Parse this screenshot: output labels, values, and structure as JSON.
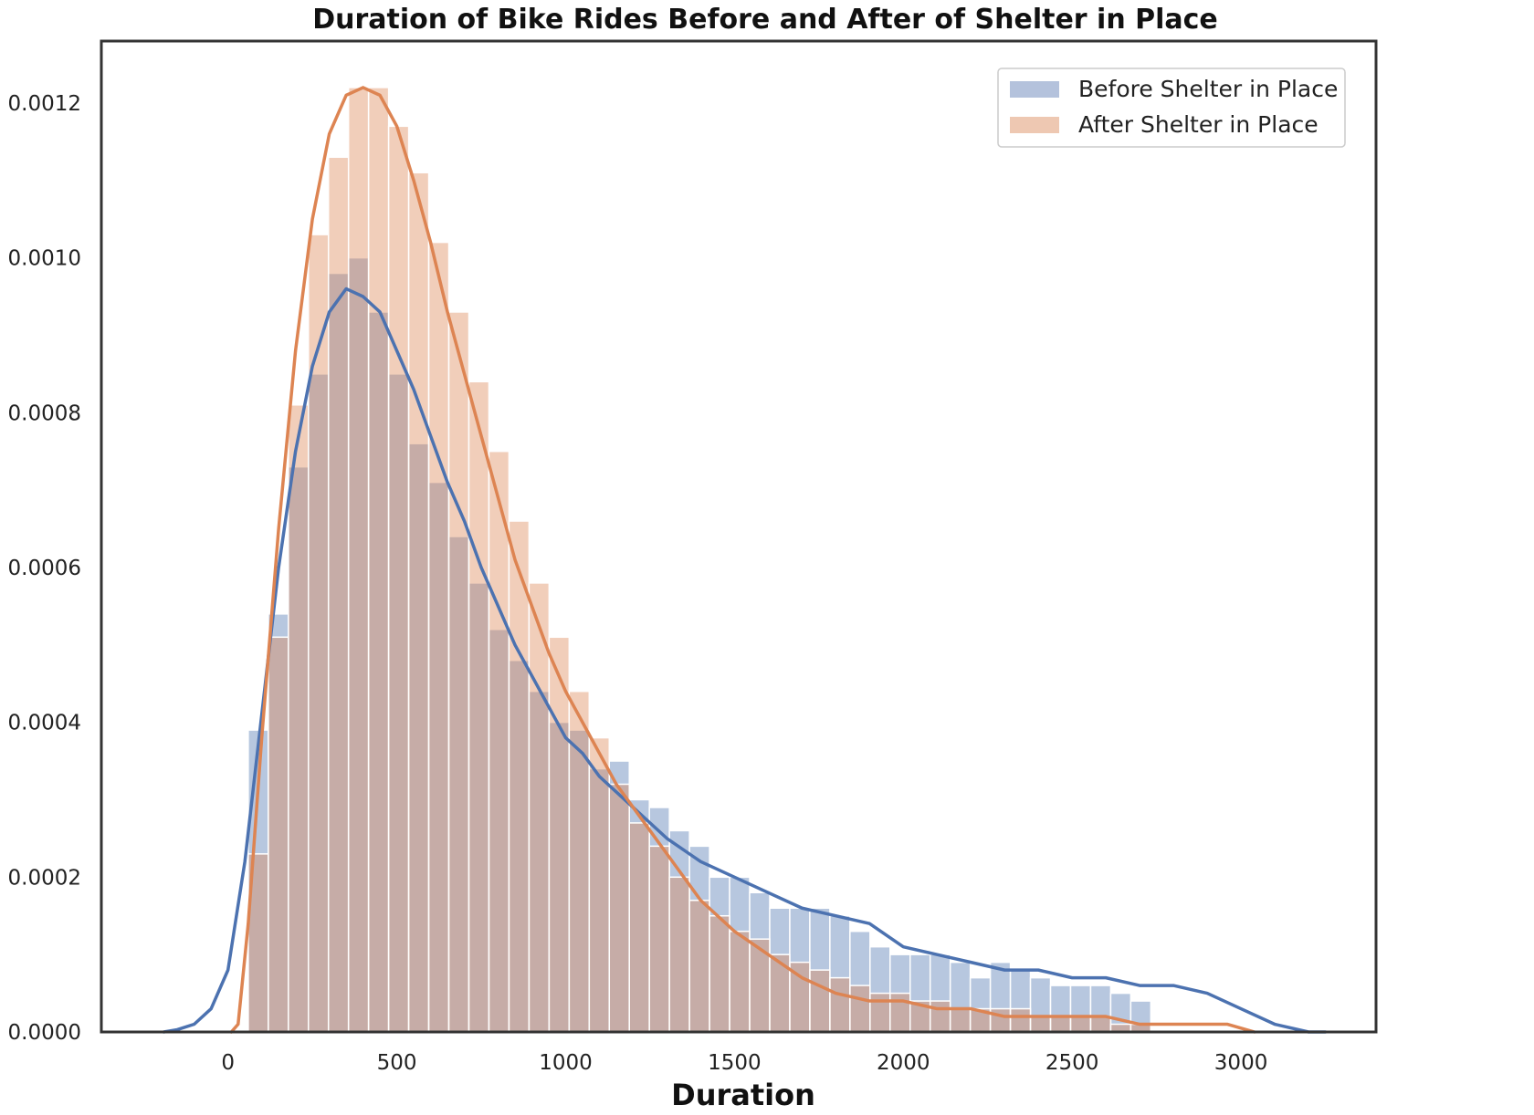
{
  "chart_data": {
    "type": "histogram",
    "title": "Duration of Bike Rides Before and After of Shelter in Place",
    "xlabel": "Duration",
    "ylabel": "",
    "xlim": [
      -375,
      3400
    ],
    "ylim": [
      0,
      0.00128
    ],
    "x_ticks": [
      0,
      500,
      1000,
      1500,
      2000,
      2500,
      3000
    ],
    "y_ticks": [
      0,
      0.0002,
      0.0004,
      0.0006,
      0.0008,
      0.001,
      0.0012
    ],
    "x_tick_labels": [
      "0",
      "500",
      "1000",
      "1500",
      "2000",
      "2500",
      "3000"
    ],
    "y_tick_labels": [
      "0.0000",
      "0.0002",
      "0.0004",
      "0.0006",
      "0.0008",
      "0.0010",
      "0.0012"
    ],
    "grid": false,
    "legend_position": "top-right",
    "bin_start": 60,
    "bin_width": 59.4,
    "series": [
      {
        "name": "Before Shelter in Place",
        "color": "#4c72b0",
        "bar_color": "#b4c2dc",
        "values": [
          0.00039,
          0.00054,
          0.00073,
          0.00085,
          0.00098,
          0.001,
          0.00093,
          0.00085,
          0.00076,
          0.00071,
          0.00064,
          0.00058,
          0.00052,
          0.00048,
          0.00044,
          0.0004,
          0.00039,
          0.00034,
          0.00035,
          0.0003,
          0.00029,
          0.00026,
          0.00024,
          0.0002,
          0.0002,
          0.00018,
          0.00016,
          0.00016,
          0.00016,
          0.00015,
          0.00013,
          0.00011,
          0.0001,
          0.0001,
          0.0001,
          9e-05,
          7e-05,
          9e-05,
          8e-05,
          7e-05,
          6e-05,
          6e-05,
          6e-05,
          5e-05,
          4e-05
        ]
      },
      {
        "name": "After Shelter in Place",
        "color": "#dd8452",
        "bar_color": "#eec8b2",
        "values": [
          0.00023,
          0.00051,
          0.00081,
          0.00103,
          0.00113,
          0.00122,
          0.00122,
          0.00117,
          0.00111,
          0.00102,
          0.00093,
          0.00084,
          0.00075,
          0.00066,
          0.00058,
          0.00051,
          0.00044,
          0.00038,
          0.00032,
          0.00027,
          0.00024,
          0.0002,
          0.00017,
          0.00015,
          0.00013,
          0.00012,
          0.0001,
          9e-05,
          8e-05,
          7e-05,
          6e-05,
          5e-05,
          5e-05,
          4e-05,
          4e-05,
          3e-05,
          3e-05,
          3e-05,
          3e-05,
          2e-05,
          2e-05,
          2e-05,
          2e-05,
          1e-05,
          1e-05
        ]
      }
    ],
    "kde": [
      {
        "name": "Before Shelter in Place",
        "x": [
          -190,
          -150,
          -100,
          -50,
          0,
          50,
          100,
          150,
          200,
          250,
          300,
          350,
          400,
          450,
          500,
          550,
          600,
          650,
          700,
          750,
          800,
          850,
          900,
          950,
          1000,
          1050,
          1100,
          1200,
          1300,
          1400,
          1500,
          1600,
          1700,
          1800,
          1900,
          2000,
          2100,
          2200,
          2300,
          2400,
          2500,
          2600,
          2700,
          2800,
          2900,
          3000,
          3100,
          3200,
          3250
        ],
        "y": [
          0,
          3e-06,
          1e-05,
          3e-05,
          8e-05,
          0.00022,
          0.00041,
          0.0006,
          0.00075,
          0.00086,
          0.00093,
          0.00096,
          0.00095,
          0.00093,
          0.00088,
          0.00083,
          0.00077,
          0.00071,
          0.00066,
          0.0006,
          0.00055,
          0.0005,
          0.00046,
          0.00042,
          0.00038,
          0.00036,
          0.00033,
          0.00029,
          0.00025,
          0.00022,
          0.0002,
          0.00018,
          0.00016,
          0.00015,
          0.00014,
          0.00011,
          0.0001,
          9e-05,
          8e-05,
          8e-05,
          7e-05,
          7e-05,
          6e-05,
          6e-05,
          5e-05,
          3e-05,
          1e-05,
          0,
          0
        ]
      },
      {
        "name": "After Shelter in Place",
        "x": [
          10,
          30,
          60,
          100,
          150,
          200,
          250,
          300,
          350,
          400,
          450,
          500,
          550,
          600,
          650,
          700,
          750,
          800,
          850,
          900,
          950,
          1000,
          1050,
          1100,
          1150,
          1200,
          1250,
          1300,
          1400,
          1500,
          1600,
          1700,
          1800,
          1900,
          2000,
          2100,
          2200,
          2300,
          2400,
          2500,
          2600,
          2700,
          2800,
          2900,
          2960,
          3000,
          3040
        ],
        "y": [
          0,
          1e-05,
          0.00014,
          0.00038,
          0.00065,
          0.00088,
          0.00105,
          0.00116,
          0.00121,
          0.00122,
          0.00121,
          0.00117,
          0.0011,
          0.00102,
          0.00093,
          0.00085,
          0.00077,
          0.00069,
          0.00061,
          0.00055,
          0.00049,
          0.00044,
          0.0004,
          0.00036,
          0.00032,
          0.00029,
          0.00026,
          0.00023,
          0.00017,
          0.00013,
          0.0001,
          7e-05,
          5e-05,
          4e-05,
          4e-05,
          3e-05,
          3e-05,
          2e-05,
          2e-05,
          2e-05,
          2e-05,
          1e-05,
          1e-05,
          1e-05,
          1e-05,
          5e-06,
          0
        ]
      }
    ]
  }
}
